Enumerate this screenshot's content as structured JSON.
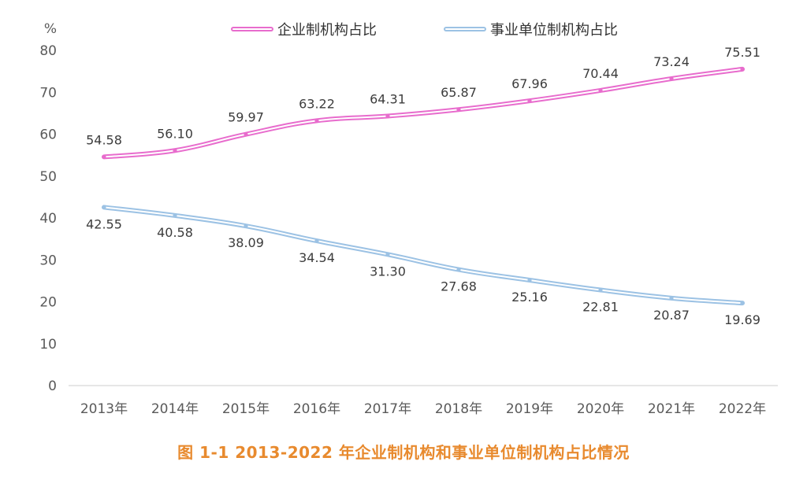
{
  "chart_data": {
    "type": "line",
    "unit_label": "%",
    "categories": [
      "2013年",
      "2014年",
      "2015年",
      "2016年",
      "2017年",
      "2018年",
      "2019年",
      "2020年",
      "2021年",
      "2022年"
    ],
    "ylim": [
      0,
      80
    ],
    "yticks": [
      "0",
      "10",
      "20",
      "30",
      "40",
      "50",
      "60",
      "70",
      "80"
    ],
    "grid": false,
    "legend_position": "top",
    "series": [
      {
        "name": "企业制机构占比",
        "color": "#e86ccd",
        "values": [
          54.58,
          56.1,
          59.97,
          63.22,
          64.31,
          65.87,
          67.96,
          70.44,
          73.24,
          75.51
        ],
        "labels": [
          "54.58",
          "56.10",
          "59.97",
          "63.22",
          "64.31",
          "65.87",
          "67.96",
          "70.44",
          "73.24",
          "75.51"
        ],
        "label_position": "above"
      },
      {
        "name": "事业单位制机构占比",
        "color": "#9cc2e4",
        "values": [
          42.55,
          40.58,
          38.09,
          34.54,
          31.3,
          27.68,
          25.16,
          22.81,
          20.87,
          19.69
        ],
        "labels": [
          "42.55",
          "40.58",
          "38.09",
          "34.54",
          "31.30",
          "27.68",
          "25.16",
          "22.81",
          "20.87",
          "19.69"
        ],
        "label_position": "below"
      }
    ]
  },
  "caption": {
    "text": "图 1-1    2013-2022 年企业制机构和事业单位制机构占比情况",
    "color": "#e88a2e"
  }
}
